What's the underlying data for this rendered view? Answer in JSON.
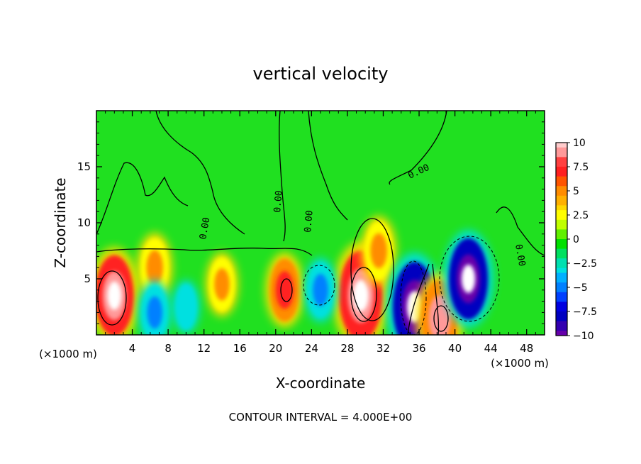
{
  "chart_data": {
    "type": "heatmap",
    "title": "vertical velocity",
    "xlabel": "X-coordinate",
    "ylabel": "Z-coordinate",
    "x_unit_left": "(×1000 m)",
    "x_unit_right": "(×1000 m)",
    "xlim": [
      0,
      50
    ],
    "ylim": [
      0,
      20
    ],
    "x_ticks": [
      4,
      8,
      12,
      16,
      20,
      24,
      28,
      32,
      36,
      40,
      44,
      48
    ],
    "y_ticks": [
      5,
      10,
      15
    ],
    "colorbar": {
      "ticks": [
        "10",
        "7.5",
        "5",
        "2.5",
        "0",
        "−2.5",
        "−5",
        "−7.5",
        "−10"
      ],
      "range": [
        -10,
        10
      ],
      "colors": [
        "#ff9999",
        "#ff2020",
        "#ff8c00",
        "#ffff00",
        "#00e000",
        "#00e0e0",
        "#0080ff",
        "#0000c0",
        "#6600aa"
      ]
    },
    "contour_labels": [
      "0.00",
      "0.00",
      "0.00",
      "0.00",
      "0.00"
    ],
    "footnote": "CONTOUR INTERVAL = 4.000E+00",
    "features": [
      {
        "x": 2,
        "z": 3.5,
        "value": 11
      },
      {
        "x": 6.5,
        "z": 6,
        "value": 6
      },
      {
        "x": 14,
        "z": 4.5,
        "value": 5
      },
      {
        "x": 21,
        "z": 4,
        "value": 7
      },
      {
        "x": 29.5,
        "z": 3.5,
        "value": 13
      },
      {
        "x": 31.5,
        "z": 7.5,
        "value": 6
      },
      {
        "x": 35.5,
        "z": 2.5,
        "value": -13
      },
      {
        "x": 38.3,
        "z": 1.5,
        "value": 10
      },
      {
        "x": 41.5,
        "z": 5,
        "value": -11
      },
      {
        "x": 25,
        "z": 4,
        "value": -5
      },
      {
        "x": 6.5,
        "z": 2,
        "value": -5
      },
      {
        "x": 10,
        "z": 2.5,
        "value": -3
      }
    ]
  }
}
